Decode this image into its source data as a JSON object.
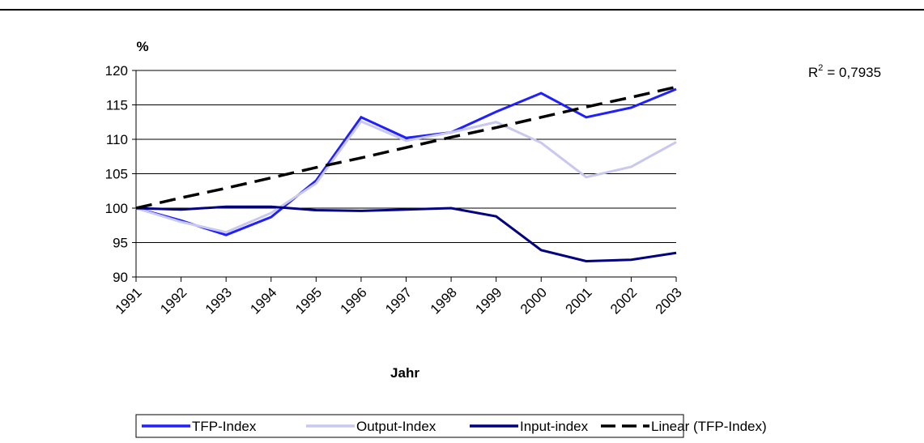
{
  "chart_data": {
    "type": "line",
    "y_label": "%",
    "x_label": "Jahr",
    "categories": [
      "1991",
      "1992",
      "1993",
      "1994",
      "1995",
      "1996",
      "1997",
      "1998",
      "1999",
      "2000",
      "2001",
      "2002",
      "2003"
    ],
    "series": [
      {
        "name": "TFP-Index",
        "color": "#1f1fff",
        "values": [
          100,
          98.2,
          96.1,
          98.7,
          104,
          113.2,
          110.2,
          111,
          114,
          116.7,
          113.2,
          114.6,
          117.3
        ]
      },
      {
        "name": "Output-Index",
        "color": "#c8c8f0",
        "values": [
          100,
          98,
          96.5,
          99.3,
          103.6,
          112.6,
          109.8,
          111,
          112.5,
          109.5,
          104.5,
          106,
          109.6
        ]
      },
      {
        "name": "Input-index",
        "color": "#000080",
        "values": [
          100,
          99.8,
          100.2,
          100.2,
          99.7,
          99.6,
          99.8,
          100,
          98.8,
          93.9,
          92.3,
          92.5,
          93.5
        ]
      },
      {
        "name": "Linear (TFP-Index)",
        "color": "#000000",
        "dashed": true,
        "values": [
          100,
          101.5,
          102.9,
          104.4,
          105.9,
          107.3,
          108.8,
          110.3,
          111.7,
          113.2,
          114.7,
          116.1,
          117.6
        ]
      }
    ],
    "annotation": {
      "base": "R",
      "sup": "2",
      "text": "= 0,7935"
    },
    "ylim": [
      90,
      120
    ],
    "yticks": [
      90,
      95,
      100,
      105,
      110,
      115,
      120
    ],
    "grid": true,
    "legend": "bottom"
  }
}
